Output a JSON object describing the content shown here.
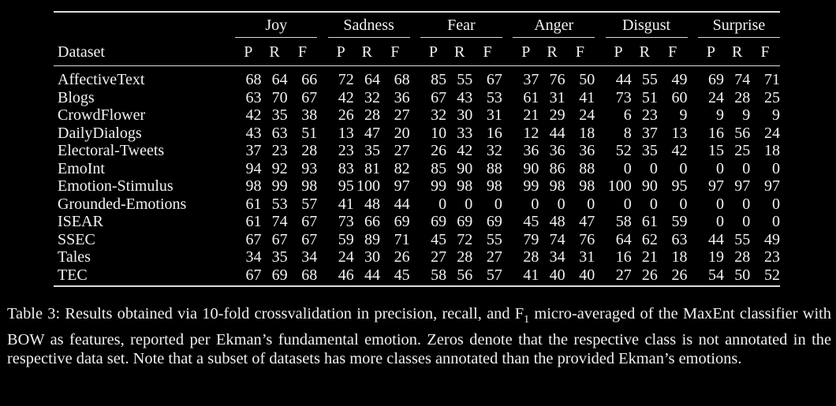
{
  "table": {
    "dataset_header": "Dataset",
    "emotions": [
      "Joy",
      "Sadness",
      "Fear",
      "Anger",
      "Disgust",
      "Surprise"
    ],
    "metric_labels": [
      "P",
      "R",
      "F"
    ],
    "rows": [
      {
        "dataset": "AffectiveText",
        "values": [
          68,
          64,
          66,
          72,
          64,
          68,
          85,
          55,
          67,
          37,
          76,
          50,
          44,
          55,
          49,
          69,
          74,
          71
        ]
      },
      {
        "dataset": "Blogs",
        "values": [
          63,
          70,
          67,
          42,
          32,
          36,
          67,
          43,
          53,
          61,
          31,
          41,
          73,
          51,
          60,
          24,
          28,
          25
        ]
      },
      {
        "dataset": "CrowdFlower",
        "values": [
          42,
          35,
          38,
          26,
          28,
          27,
          32,
          30,
          31,
          21,
          29,
          24,
          6,
          23,
          9,
          9,
          9,
          9
        ]
      },
      {
        "dataset": "DailyDialogs",
        "values": [
          43,
          63,
          51,
          13,
          47,
          20,
          10,
          33,
          16,
          12,
          44,
          18,
          8,
          37,
          13,
          16,
          56,
          24
        ]
      },
      {
        "dataset": "Electoral-Tweets",
        "values": [
          37,
          23,
          28,
          23,
          35,
          27,
          26,
          42,
          32,
          36,
          36,
          36,
          52,
          35,
          42,
          15,
          25,
          18
        ]
      },
      {
        "dataset": "EmoInt",
        "values": [
          94,
          92,
          93,
          83,
          81,
          82,
          85,
          90,
          88,
          90,
          86,
          88,
          0,
          0,
          0,
          0,
          0,
          0
        ]
      },
      {
        "dataset": "Emotion-Stimulus",
        "values": [
          98,
          99,
          98,
          95,
          100,
          97,
          99,
          98,
          98,
          99,
          98,
          98,
          100,
          90,
          95,
          97,
          97,
          97
        ]
      },
      {
        "dataset": "Grounded-Emotions",
        "values": [
          61,
          53,
          57,
          41,
          48,
          44,
          0,
          0,
          0,
          0,
          0,
          0,
          0,
          0,
          0,
          0,
          0,
          0
        ]
      },
      {
        "dataset": "ISEAR",
        "values": [
          61,
          74,
          67,
          73,
          66,
          69,
          69,
          69,
          69,
          45,
          48,
          47,
          58,
          61,
          59,
          0,
          0,
          0
        ]
      },
      {
        "dataset": "SSEC",
        "values": [
          67,
          67,
          67,
          59,
          89,
          71,
          45,
          72,
          55,
          79,
          74,
          76,
          64,
          62,
          63,
          44,
          55,
          49
        ]
      },
      {
        "dataset": "Tales",
        "values": [
          34,
          35,
          34,
          24,
          30,
          26,
          27,
          28,
          27,
          28,
          34,
          31,
          16,
          21,
          18,
          19,
          28,
          23
        ]
      },
      {
        "dataset": "TEC",
        "values": [
          67,
          69,
          68,
          46,
          44,
          45,
          58,
          56,
          57,
          41,
          40,
          40,
          27,
          26,
          26,
          54,
          50,
          52
        ]
      }
    ]
  },
  "caption": {
    "prefix": "Table 3: Results obtained via 10-fold crossvalidation in precision, recall, and F",
    "subscript": "1",
    "suffix": " micro-averaged of the MaxEnt classifier with BOW as features, reported per Ekman’s fundamental emotion. Zeros denote that the respective class is not annotated in the respective data set. Note that a subset of datasets has more classes annotated than the provided Ekman’s emotions."
  }
}
